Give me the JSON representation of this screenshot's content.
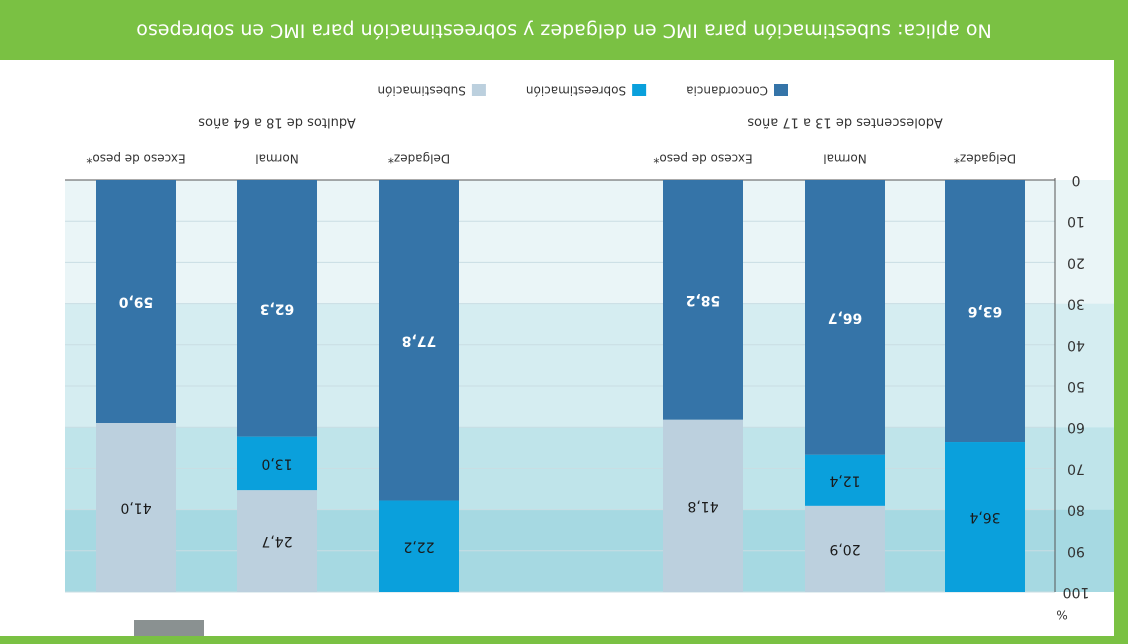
{
  "chart_data": {
    "type": "bar",
    "stacked": true,
    "y_label": "%",
    "note": "No aplica: subestimación para IMC en delgadez y sobreestimación para IMC en sobrepeso",
    "groups": [
      "Adolescentes de 13 a 17 años",
      "Adultos de 18 a 64 años"
    ],
    "categories": [
      "Delgadez*",
      "Normal",
      "Exceso de peso*",
      "Delgadez*",
      "Normal",
      "Exceso de peso*"
    ],
    "series": [
      {
        "name": "Concordancia",
        "color": "#3574a8",
        "values": [
          63.6,
          66.7,
          58.2,
          77.8,
          62.3,
          59.0
        ],
        "value_labels": [
          "63,6",
          "66,7",
          "58,2",
          "77,8",
          "62,3",
          "59,0"
        ]
      },
      {
        "name": "Sobreestimación",
        "color": "#0aa0dc",
        "values": [
          36.4,
          12.4,
          null,
          22.2,
          13.0,
          null
        ],
        "value_labels": [
          "36,4",
          "12,4",
          null,
          "22,2",
          "13,0",
          null
        ]
      },
      {
        "name": "Subestimación",
        "color": "#bcd0de",
        "values": [
          null,
          20.9,
          41.8,
          null,
          24.7,
          41.0
        ],
        "value_labels": [
          null,
          "20,9",
          "41,8",
          null,
          "24,7",
          "41,0"
        ]
      }
    ],
    "ylim": [
      0,
      100
    ],
    "yticks": [
      0,
      10,
      20,
      30,
      40,
      50,
      60,
      70,
      80,
      90,
      100
    ],
    "grid": true
  }
}
